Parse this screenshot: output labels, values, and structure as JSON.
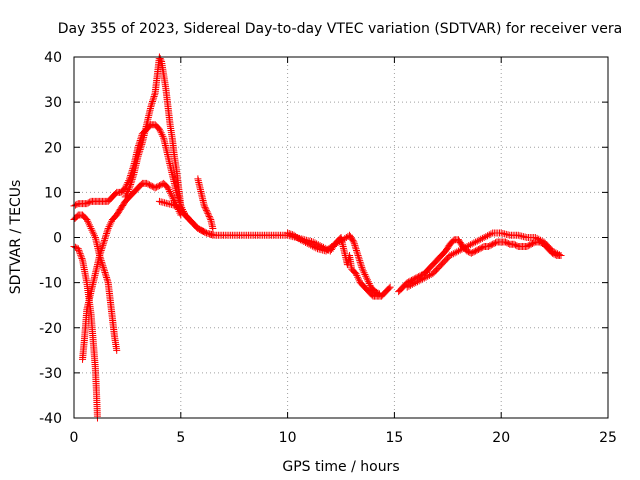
{
  "chart_data": {
    "type": "scatter",
    "title": "Day 355 of 2023, Sidereal Day-to-day VTEC variation (SDTVAR) for receiver vera",
    "xlabel": "GPS time / hours",
    "ylabel": "SDTVAR / TECUs",
    "xlim": [
      0,
      25
    ],
    "ylim": [
      -40,
      40
    ],
    "xticks": [
      0,
      5,
      10,
      15,
      20,
      25
    ],
    "yticks": [
      -40,
      -30,
      -20,
      -10,
      0,
      10,
      20,
      30,
      40
    ],
    "grid": true,
    "marker": "+",
    "series": [
      {
        "name": "trace-1",
        "color": "#ff0000",
        "points": [
          [
            0.0,
            -2
          ],
          [
            0.2,
            -2.5
          ],
          [
            0.4,
            -5
          ],
          [
            0.6,
            -10
          ],
          [
            0.8,
            -17
          ],
          [
            0.9,
            -23
          ],
          [
            1.0,
            -29
          ],
          [
            1.05,
            -34
          ],
          [
            1.1,
            -40
          ]
        ]
      },
      {
        "name": "trace-2",
        "color": "#ff0000",
        "points": [
          [
            0.4,
            -27
          ],
          [
            0.5,
            -22
          ],
          [
            0.6,
            -16
          ],
          [
            0.8,
            -12
          ],
          [
            1.0,
            -8
          ],
          [
            1.2,
            -4
          ],
          [
            1.4,
            -1
          ],
          [
            1.6,
            2
          ],
          [
            1.8,
            4
          ],
          [
            2.0,
            5
          ],
          [
            2.2,
            6.5
          ],
          [
            2.4,
            8
          ],
          [
            2.6,
            9
          ],
          [
            2.8,
            10
          ],
          [
            3.0,
            11
          ],
          [
            3.2,
            12
          ],
          [
            3.4,
            12
          ],
          [
            3.6,
            11.5
          ],
          [
            3.8,
            11
          ],
          [
            4.0,
            11.5
          ],
          [
            4.2,
            12
          ],
          [
            4.4,
            11
          ],
          [
            4.6,
            9
          ],
          [
            4.8,
            7
          ],
          [
            5.0,
            5
          ]
        ]
      },
      {
        "name": "trace-3",
        "color": "#ff0000",
        "points": [
          [
            0.0,
            4
          ],
          [
            0.2,
            5
          ],
          [
            0.4,
            5
          ],
          [
            0.6,
            4
          ],
          [
            0.8,
            2
          ],
          [
            1.0,
            0
          ],
          [
            1.2,
            -4
          ],
          [
            1.4,
            -7
          ],
          [
            1.6,
            -10
          ],
          [
            1.7,
            -14
          ],
          [
            1.8,
            -18
          ],
          [
            1.9,
            -22
          ],
          [
            2.0,
            -25
          ]
        ]
      },
      {
        "name": "trace-4",
        "color": "#ff0000",
        "points": [
          [
            0.0,
            7
          ],
          [
            0.2,
            7.5
          ],
          [
            0.4,
            7.5
          ],
          [
            0.6,
            7.5
          ],
          [
            0.8,
            8
          ],
          [
            1.0,
            8
          ],
          [
            1.2,
            8
          ],
          [
            1.4,
            8
          ],
          [
            1.6,
            8
          ],
          [
            1.8,
            9
          ],
          [
            2.0,
            10
          ],
          [
            2.2,
            10
          ],
          [
            2.4,
            11
          ],
          [
            2.6,
            13
          ],
          [
            2.8,
            16
          ],
          [
            3.0,
            20
          ],
          [
            3.2,
            23
          ],
          [
            3.4,
            24
          ],
          [
            3.6,
            25
          ],
          [
            3.8,
            25
          ],
          [
            4.0,
            24
          ],
          [
            4.2,
            22
          ],
          [
            4.4,
            18
          ],
          [
            4.6,
            14
          ],
          [
            4.8,
            10
          ],
          [
            5.0,
            7
          ],
          [
            5.2,
            5
          ],
          [
            5.4,
            4
          ],
          [
            5.6,
            3
          ],
          [
            5.8,
            2
          ],
          [
            6.0,
            1.5
          ],
          [
            6.2,
            1
          ],
          [
            6.5,
            0.5
          ]
        ]
      },
      {
        "name": "trace-5",
        "color": "#ff0000",
        "points": [
          [
            2.4,
            9
          ],
          [
            2.6,
            11
          ],
          [
            2.8,
            14
          ],
          [
            3.0,
            18
          ],
          [
            3.2,
            21
          ],
          [
            3.4,
            25
          ],
          [
            3.6,
            29
          ],
          [
            3.8,
            32
          ],
          [
            3.9,
            36
          ],
          [
            4.0,
            40
          ],
          [
            4.1,
            39
          ],
          [
            4.2,
            36
          ],
          [
            4.3,
            33
          ],
          [
            4.4,
            29
          ],
          [
            4.5,
            25
          ],
          [
            4.6,
            22
          ],
          [
            4.7,
            18
          ],
          [
            4.8,
            15
          ],
          [
            4.9,
            11
          ],
          [
            5.0,
            7
          ],
          [
            5.2,
            5
          ],
          [
            5.4,
            4
          ],
          [
            5.6,
            3
          ]
        ]
      },
      {
        "name": "trace-6",
        "color": "#ff0000",
        "points": [
          [
            5.8,
            13
          ],
          [
            5.9,
            11
          ],
          [
            6.0,
            9
          ],
          [
            6.1,
            7
          ],
          [
            6.2,
            6
          ],
          [
            6.3,
            5
          ],
          [
            6.4,
            4
          ],
          [
            6.5,
            2
          ]
        ]
      },
      {
        "name": "trace-7",
        "color": "#ff0000",
        "points": [
          [
            4.0,
            8
          ],
          [
            4.4,
            7.5
          ],
          [
            4.8,
            7
          ],
          [
            5.0,
            6
          ],
          [
            5.4,
            4
          ],
          [
            5.8,
            2
          ],
          [
            6.2,
            1
          ],
          [
            6.6,
            0.5
          ],
          [
            7.0,
            0.5
          ],
          [
            7.5,
            0.5
          ],
          [
            8.0,
            0.5
          ],
          [
            8.5,
            0.5
          ],
          [
            9.0,
            0.5
          ],
          [
            9.5,
            0.5
          ],
          [
            10.0,
            0.5
          ],
          [
            10.4,
            0
          ],
          [
            10.8,
            -0.5
          ],
          [
            11.2,
            -1
          ],
          [
            11.6,
            -2
          ],
          [
            12.0,
            -3
          ],
          [
            12.3,
            -1
          ],
          [
            12.5,
            0
          ],
          [
            12.6,
            -2
          ],
          [
            12.7,
            -4
          ],
          [
            12.8,
            -6
          ],
          [
            12.9,
            -4
          ],
          [
            13.0,
            -7
          ],
          [
            13.2,
            -8
          ],
          [
            13.4,
            -10
          ],
          [
            13.6,
            -11
          ],
          [
            13.8,
            -12
          ],
          [
            14.0,
            -13
          ],
          [
            14.2,
            -13
          ],
          [
            14.4,
            -13
          ],
          [
            14.6,
            -12
          ],
          [
            14.8,
            -11
          ]
        ]
      },
      {
        "name": "trace-8",
        "color": "#ff0000",
        "points": [
          [
            10.0,
            1
          ],
          [
            10.3,
            0.5
          ],
          [
            10.6,
            -0.5
          ],
          [
            11.0,
            -1.5
          ],
          [
            11.4,
            -2.5
          ],
          [
            11.8,
            -3
          ],
          [
            12.2,
            -1.5
          ],
          [
            12.6,
            -0.5
          ],
          [
            12.9,
            0.5
          ],
          [
            13.1,
            -1
          ],
          [
            13.3,
            -4
          ],
          [
            13.5,
            -7
          ],
          [
            13.7,
            -9
          ],
          [
            13.9,
            -11
          ],
          [
            14.1,
            -12
          ],
          [
            14.3,
            -12.5
          ]
        ]
      },
      {
        "name": "trace-9",
        "color": "#ff0000",
        "points": [
          [
            15.2,
            -12
          ],
          [
            15.4,
            -11
          ],
          [
            15.6,
            -10
          ],
          [
            15.8,
            -9.5
          ],
          [
            16.0,
            -9
          ],
          [
            16.2,
            -8.5
          ],
          [
            16.4,
            -8
          ],
          [
            16.6,
            -7
          ],
          [
            16.8,
            -6
          ],
          [
            17.0,
            -5
          ],
          [
            17.2,
            -4
          ],
          [
            17.4,
            -3
          ],
          [
            17.6,
            -1.5
          ],
          [
            17.8,
            -0.5
          ],
          [
            18.0,
            -0.5
          ],
          [
            18.2,
            -2
          ],
          [
            18.4,
            -3
          ],
          [
            18.6,
            -3.5
          ],
          [
            18.8,
            -3
          ],
          [
            19.0,
            -2.5
          ],
          [
            19.2,
            -2
          ],
          [
            19.4,
            -2
          ],
          [
            19.6,
            -1.5
          ],
          [
            19.8,
            -1
          ],
          [
            20.0,
            -1
          ],
          [
            20.2,
            -1
          ],
          [
            20.4,
            -1.5
          ],
          [
            20.6,
            -1.5
          ],
          [
            20.8,
            -2
          ],
          [
            21.0,
            -2
          ],
          [
            21.2,
            -2
          ],
          [
            21.4,
            -1.5
          ],
          [
            21.6,
            -1
          ],
          [
            21.8,
            -1
          ],
          [
            22.0,
            -1.5
          ],
          [
            22.2,
            -2.5
          ],
          [
            22.4,
            -3.5
          ],
          [
            22.6,
            -4
          ],
          [
            22.8,
            -4
          ]
        ]
      },
      {
        "name": "trace-10",
        "color": "#ff0000",
        "points": [
          [
            15.6,
            -11
          ],
          [
            16.0,
            -10
          ],
          [
            16.4,
            -9
          ],
          [
            16.8,
            -8
          ],
          [
            17.2,
            -6
          ],
          [
            17.6,
            -4
          ],
          [
            18.0,
            -3
          ],
          [
            18.4,
            -2
          ],
          [
            18.8,
            -1
          ],
          [
            19.2,
            0
          ],
          [
            19.6,
            1
          ],
          [
            20.0,
            1
          ],
          [
            20.4,
            0.5
          ],
          [
            20.8,
            0.5
          ],
          [
            21.2,
            0
          ],
          [
            21.6,
            0
          ],
          [
            22.0,
            -1
          ],
          [
            22.4,
            -3
          ],
          [
            22.8,
            -4
          ]
        ]
      }
    ]
  }
}
